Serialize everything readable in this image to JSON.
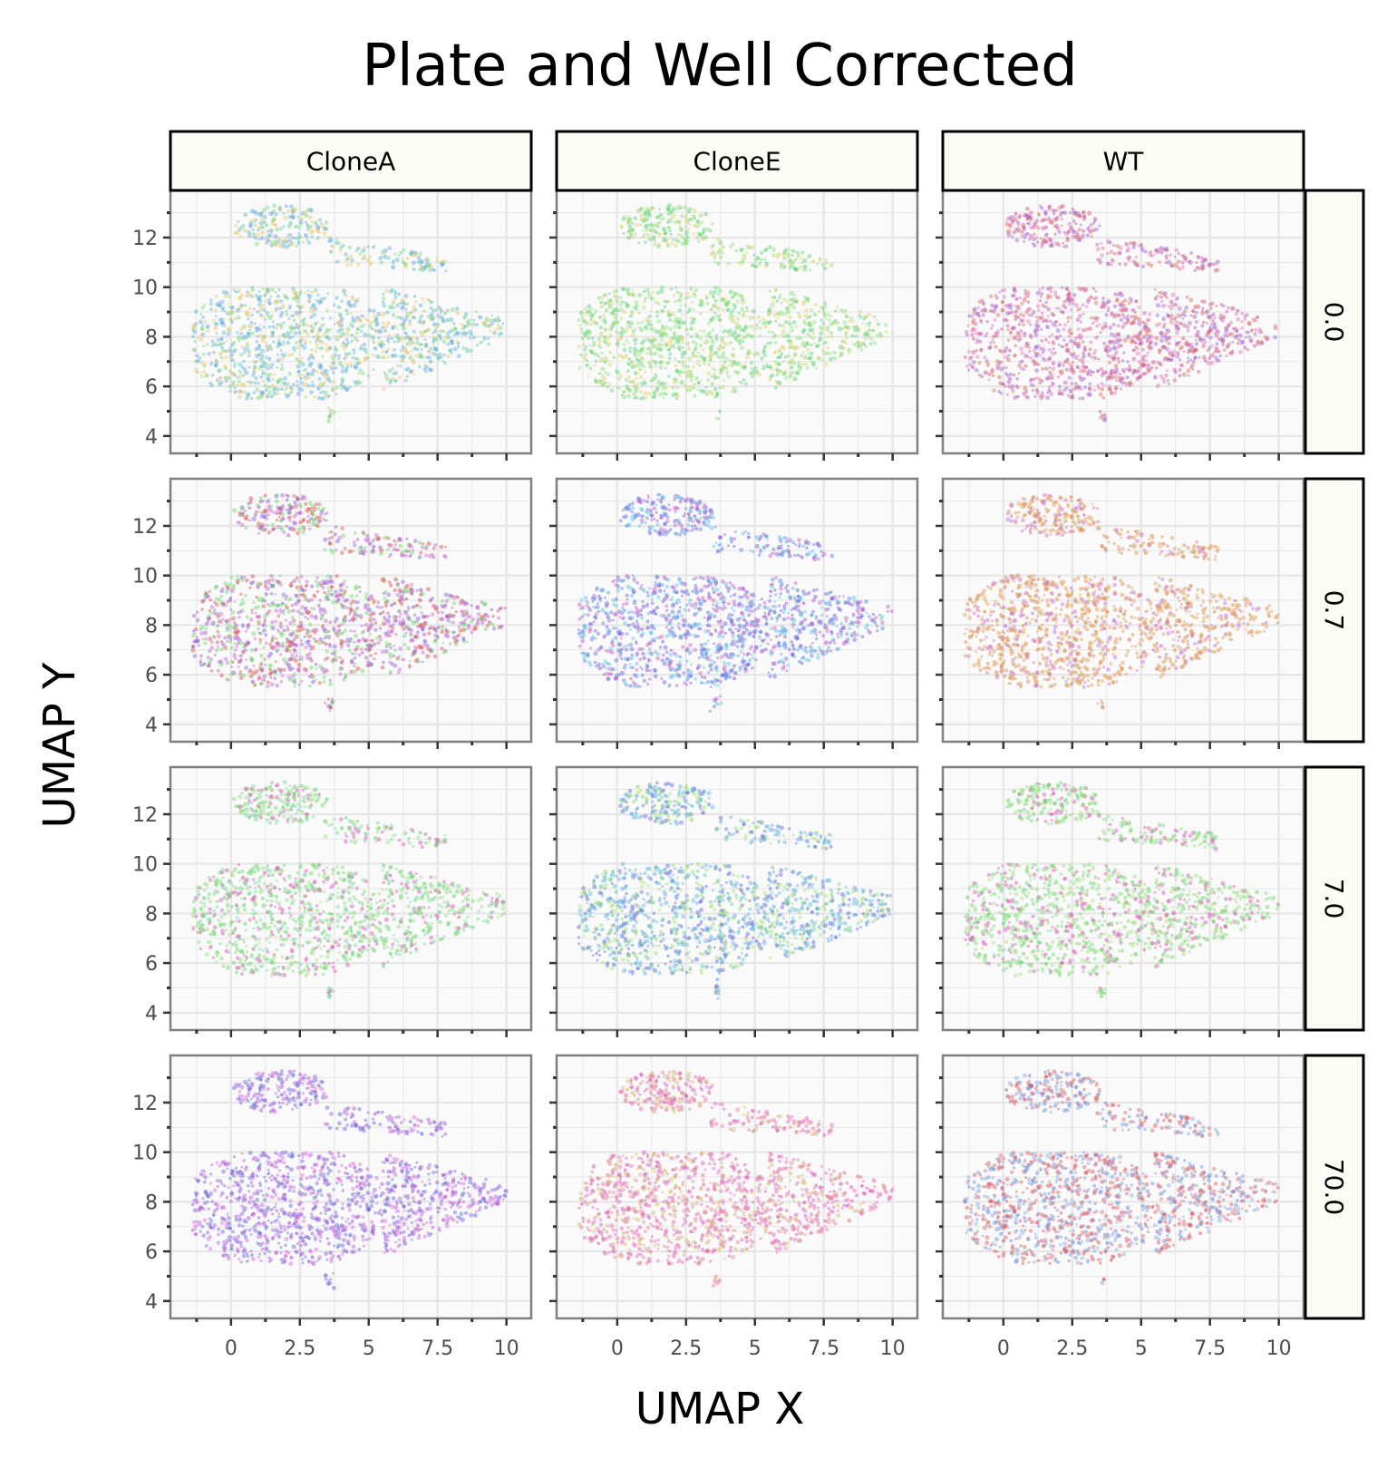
{
  "chart_data": {
    "type": "scatter",
    "title": "Plate and Well Corrected",
    "xlabel": "UMAP X",
    "ylabel": "UMAP Y",
    "facet_columns": [
      "CloneA",
      "CloneE",
      "WT"
    ],
    "facet_rows": [
      "0.0",
      "0.7",
      "7.0",
      "70.0"
    ],
    "x_ticks": [
      0,
      2.5,
      5,
      7.5,
      10
    ],
    "x_tick_labels": [
      "0",
      "2.5",
      "5",
      "7.5",
      "10"
    ],
    "y_ticks": [
      4,
      6,
      8,
      10,
      12
    ],
    "y_tick_labels": [
      "4",
      "6",
      "8",
      "10",
      "12"
    ],
    "xlim": [
      -2.2,
      10.9
    ],
    "ylim": [
      3.3,
      13.9
    ],
    "grid": true,
    "panel_background": "#fafafa",
    "grid_color": "#e6e6e6",
    "panel_border_color": "#808080",
    "strip_fill": "#fcfdf5",
    "clusters": {
      "upper_lobe": {
        "x_range": [
          0.0,
          3.6
        ],
        "y_range": [
          11.6,
          13.3
        ]
      },
      "upper_tail": {
        "x_range": [
          3.6,
          8.0
        ],
        "y_range": [
          10.2,
          11.6
        ]
      },
      "main_body": {
        "x_range": [
          -1.4,
          10.0
        ],
        "y_range": [
          5.5,
          10.0
        ]
      },
      "small_blob": {
        "x": 3.6,
        "y": 4.8
      }
    },
    "panel_colors": [
      [
        "#5bbcd6",
        "#7fd67a",
        "#e6c86e",
        "#6aa6e0"
      ],
      [
        "#7bdc73",
        "#52d17c",
        "#d9d36a",
        "#a0e08a"
      ],
      [
        "#c9559a",
        "#9b5fd6",
        "#d46a5a",
        "#e07bbd"
      ],
      [
        "#6dd66a",
        "#8c5ad6",
        "#d9504a",
        "#c96ad6"
      ],
      [
        "#6a5ad6",
        "#5b7fe0",
        "#c85acb",
        "#5bc3e6"
      ],
      [
        "#d9964a",
        "#c96ad6",
        "#e0a060",
        "#d98a4a"
      ],
      [
        "#6dd66a",
        "#d955b5",
        "#9be08a",
        "#7ad6a0"
      ],
      [
        "#5b6ad6",
        "#5bbcd6",
        "#9be06a",
        "#6aa6e0"
      ],
      [
        "#6dd66a",
        "#d955b5",
        "#a0e07a",
        "#8ad68a"
      ],
      [
        "#7a5ad6",
        "#b45ad9",
        "#d66ae0",
        "#5b6ad6"
      ],
      [
        "#d955b5",
        "#e08a9a",
        "#d9b86a",
        "#e66ac0"
      ],
      [
        "#d9505a",
        "#6a8ad6",
        "#d96a6a",
        "#8aaae0"
      ]
    ]
  }
}
